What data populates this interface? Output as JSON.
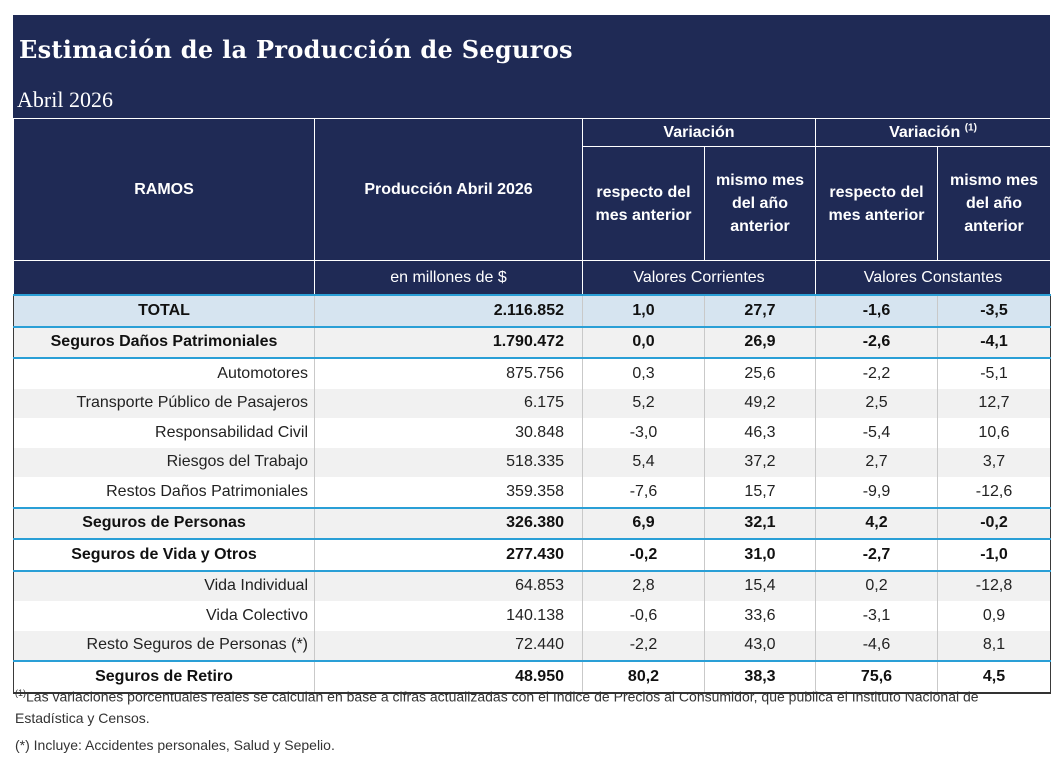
{
  "header": {
    "title": "Estimación de la Producción de Seguros",
    "subtitle": "Abril 2026"
  },
  "table": {
    "col_ramos": "RAMOS",
    "col_produccion": "Producción Abril 2026",
    "group_variacion": "Variación",
    "group_variacion_real": "Variación",
    "group_variacion_real_note": "(1)",
    "sub_respecto": "respecto del mes anterior",
    "sub_mismo": "mismo mes del año anterior",
    "sub_respecto_2": "respecto del mes anterior",
    "sub_mismo_2": "mismo mes del año anterior",
    "unit_millones": "en millones de $",
    "unit_corrientes": "Valores Corrientes",
    "unit_constantes": "Valores Constantes",
    "rows": [
      {
        "ramo": "TOTAL",
        "produccion": "2.116.852",
        "var_mes": "1,0",
        "var_anio": "27,7",
        "real_mes": "-1,6",
        "real_anio": "-3,5"
      },
      {
        "ramo": "Seguros Daños Patrimoniales",
        "produccion": "1.790.472",
        "var_mes": "0,0",
        "var_anio": "26,9",
        "real_mes": "-2,6",
        "real_anio": "-4,1"
      },
      {
        "ramo": "Automotores",
        "produccion": "875.756",
        "var_mes": "0,3",
        "var_anio": "25,6",
        "real_mes": "-2,2",
        "real_anio": "-5,1"
      },
      {
        "ramo": "Transporte Público de Pasajeros",
        "produccion": "6.175",
        "var_mes": "5,2",
        "var_anio": "49,2",
        "real_mes": "2,5",
        "real_anio": "12,7"
      },
      {
        "ramo": "Responsabilidad Civil",
        "produccion": "30.848",
        "var_mes": "-3,0",
        "var_anio": "46,3",
        "real_mes": "-5,4",
        "real_anio": "10,6"
      },
      {
        "ramo": "Riesgos del Trabajo",
        "produccion": "518.335",
        "var_mes": "5,4",
        "var_anio": "37,2",
        "real_mes": "2,7",
        "real_anio": "3,7"
      },
      {
        "ramo": "Restos Daños Patrimoniales",
        "produccion": "359.358",
        "var_mes": "-7,6",
        "var_anio": "15,7",
        "real_mes": "-9,9",
        "real_anio": "-12,6"
      },
      {
        "ramo": "Seguros de Personas",
        "produccion": "326.380",
        "var_mes": "6,9",
        "var_anio": "32,1",
        "real_mes": "4,2",
        "real_anio": "-0,2"
      },
      {
        "ramo": "Seguros de Vida y Otros",
        "produccion": "277.430",
        "var_mes": "-0,2",
        "var_anio": "31,0",
        "real_mes": "-2,7",
        "real_anio": "-1,0"
      },
      {
        "ramo": "Vida Individual",
        "produccion": "64.853",
        "var_mes": "2,8",
        "var_anio": "15,4",
        "real_mes": "0,2",
        "real_anio": "-12,8"
      },
      {
        "ramo": "Vida Colectivo",
        "produccion": "140.138",
        "var_mes": "-0,6",
        "var_anio": "33,6",
        "real_mes": "-3,1",
        "real_anio": "0,9"
      },
      {
        "ramo": "Resto Seguros de Personas (*)",
        "produccion": "72.440",
        "var_mes": "-2,2",
        "var_anio": "43,0",
        "real_mes": "-4,6",
        "real_anio": "8,1"
      },
      {
        "ramo": "Seguros de Retiro",
        "produccion": "48.950",
        "var_mes": "80,2",
        "var_anio": "38,3",
        "real_mes": "75,6",
        "real_anio": "4,5"
      }
    ]
  },
  "notes": {
    "note1_mark": "(1)",
    "note1_text": "Las variaciones porcentuales reales se calculan en base a cifras actualizadas con  el Indice de Precios al Consumidor, que publica el Instituto Nacional de Estadística y  Censos.",
    "note2_text": "(*) Incluye: Accidentes personales, Salud y Sepelio."
  },
  "colors": {
    "header_bg": "#1f2a55",
    "total_bg": "#d6e4f0",
    "accent_line": "#2a9fd6"
  }
}
